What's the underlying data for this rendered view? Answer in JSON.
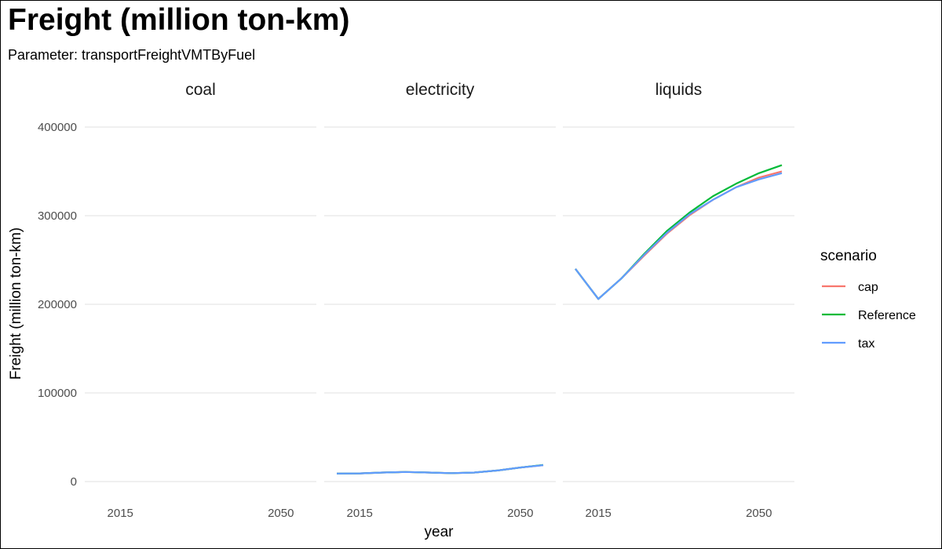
{
  "chart_data": {
    "type": "line",
    "title": "Freight (million ton-km)",
    "subtitle": "Parameter: transportFreightVMTByFuel",
    "xlabel": "year",
    "ylabel": "Freight (million ton-km)",
    "ylim": [
      0,
      400000
    ],
    "yticks": [
      0,
      100000,
      200000,
      300000,
      400000
    ],
    "xlim": [
      2010,
      2055
    ],
    "xticks": [
      2015,
      2050
    ],
    "grid": true,
    "legend": {
      "title": "scenario",
      "placement": "right",
      "entries": [
        {
          "name": "cap",
          "color": "#F8766D"
        },
        {
          "name": "Reference",
          "color": "#00BA38"
        },
        {
          "name": "tax",
          "color": "#619CFF"
        }
      ]
    },
    "panels": [
      {
        "name": "coal",
        "series": []
      },
      {
        "name": "electricity",
        "series": [
          {
            "name": "cap",
            "x": [
              2010,
              2015,
              2020,
              2025,
              2030,
              2035,
              2040,
              2045,
              2050,
              2055
            ],
            "values": [
              9000,
              9200,
              10200,
              10800,
              10200,
              9500,
              10200,
              12500,
              15800,
              18500
            ]
          },
          {
            "name": "Reference",
            "x": [
              2010,
              2015,
              2020,
              2025,
              2030,
              2035,
              2040,
              2045,
              2050,
              2055
            ],
            "values": [
              9000,
              9200,
              10200,
              10800,
              10200,
              9500,
              10200,
              12500,
              15800,
              18800
            ]
          },
          {
            "name": "tax",
            "x": [
              2010,
              2015,
              2020,
              2025,
              2030,
              2035,
              2040,
              2045,
              2050,
              2055
            ],
            "values": [
              9000,
              9200,
              10200,
              10800,
              10200,
              9500,
              10200,
              12500,
              15800,
              18500
            ]
          }
        ]
      },
      {
        "name": "liquids",
        "series": [
          {
            "name": "cap",
            "x": [
              2010,
              2015,
              2020,
              2025,
              2030,
              2035,
              2040,
              2045,
              2050,
              2055
            ],
            "values": [
              240000,
              206000,
              229000,
              255000,
              280000,
              301000,
              318000,
              332000,
              343000,
              350000
            ]
          },
          {
            "name": "Reference",
            "x": [
              2010,
              2015,
              2020,
              2025,
              2030,
              2035,
              2040,
              2045,
              2050,
              2055
            ],
            "values": [
              240000,
              206000,
              229000,
              257000,
              283000,
              304000,
              322000,
              336000,
              348000,
              357000
            ]
          },
          {
            "name": "tax",
            "x": [
              2010,
              2015,
              2020,
              2025,
              2030,
              2035,
              2040,
              2045,
              2050,
              2055
            ],
            "values": [
              240000,
              206000,
              229000,
              256000,
              281000,
              302000,
              318000,
              332000,
              341000,
              348000
            ]
          }
        ]
      }
    ]
  }
}
